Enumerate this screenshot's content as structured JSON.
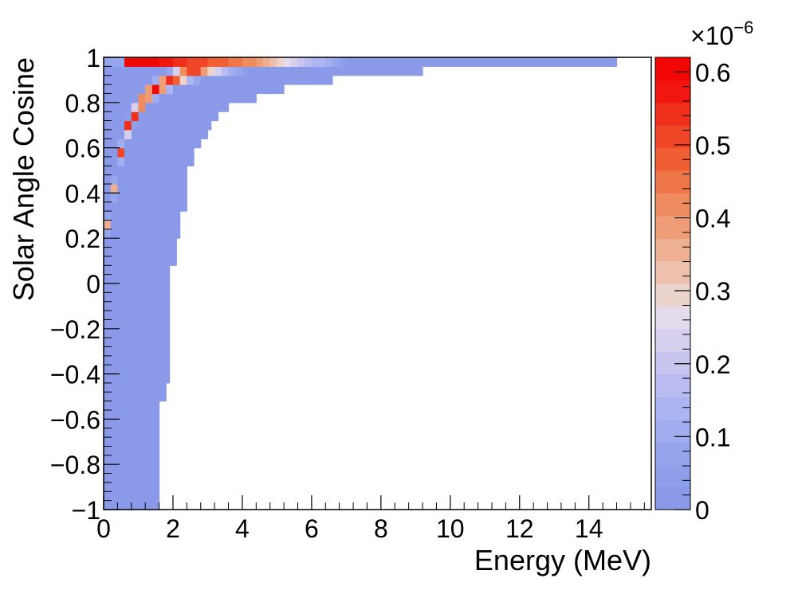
{
  "chart_data": {
    "type": "heatmap",
    "title": "",
    "xlabel": "Energy (MeV)",
    "ylabel": "Solar Angle Cosine",
    "xlim": [
      0,
      15.8
    ],
    "ylim": [
      -1,
      1
    ],
    "x_ticks": [
      "0",
      "2",
      "4",
      "6",
      "8",
      "10",
      "12",
      "14"
    ],
    "x_tick_values": [
      0,
      2,
      4,
      6,
      8,
      10,
      12,
      14
    ],
    "y_ticks": [
      "−1",
      "−0.8",
      "−0.6",
      "−0.4",
      "−0.2",
      "0",
      "0.2",
      "0.4",
      "0.6",
      "0.8",
      "1"
    ],
    "y_tick_values": [
      -1,
      -0.8,
      -0.6,
      -0.4,
      -0.2,
      0,
      0.2,
      0.4,
      0.6,
      0.8,
      1
    ],
    "colorbar": {
      "range": [
        0,
        0.62
      ],
      "multiplier": "×10",
      "exponent": "−6",
      "ticks": [
        "0",
        "0.1",
        "0.2",
        "0.3",
        "0.4",
        "0.5",
        "0.6"
      ],
      "tick_values": [
        0,
        0.1,
        0.2,
        0.3,
        0.4,
        0.5,
        0.6
      ],
      "palette": [
        "#8a9ae8",
        "#8e9ee9",
        "#95a6ed",
        "#a0aef0",
        "#acb4f1",
        "#b9bbf1",
        "#c8c5ef",
        "#d6d0ee",
        "#e4dbed",
        "#ecd3cc",
        "#edc1ae",
        "#edb092",
        "#ee9d76",
        "#ee8b5f",
        "#ef7649",
        "#ef5f33",
        "#f04628",
        "#f02e1c",
        "#f11710",
        "#f20505"
      ]
    },
    "bins": {
      "x_bin_width": 0.2,
      "y_bin_width": 0.04,
      "extent_note_values": "energy extent (MeV) of nonzero content per cosine band",
      "bands": [
        {
          "y_min": -1.0,
          "y_max": -0.52,
          "x_max": 1.6
        },
        {
          "y_min": -0.52,
          "y_max": -0.44,
          "x_max": 1.8
        },
        {
          "y_min": -0.44,
          "y_max": 0.08,
          "x_max": 1.9
        },
        {
          "y_min": 0.08,
          "y_max": 0.2,
          "x_max": 2.1
        },
        {
          "y_min": 0.2,
          "y_max": 0.32,
          "x_max": 2.2
        },
        {
          "y_min": 0.32,
          "y_max": 0.52,
          "x_max": 2.4
        },
        {
          "y_min": 0.52,
          "y_max": 0.6,
          "x_max": 2.6
        },
        {
          "y_min": 0.6,
          "y_max": 0.64,
          "x_max": 2.8
        },
        {
          "y_min": 0.64,
          "y_max": 0.68,
          "x_max": 3.0
        },
        {
          "y_min": 0.68,
          "y_max": 0.72,
          "x_max": 3.1
        },
        {
          "y_min": 0.72,
          "y_max": 0.76,
          "x_max": 3.3
        },
        {
          "y_min": 0.76,
          "y_max": 0.8,
          "x_max": 3.6
        },
        {
          "y_min": 0.8,
          "y_max": 0.84,
          "x_max": 4.4
        },
        {
          "y_min": 0.84,
          "y_max": 0.88,
          "x_max": 5.2
        },
        {
          "y_min": 0.88,
          "y_max": 0.92,
          "x_max": 6.6
        },
        {
          "y_min": 0.92,
          "y_max": 0.96,
          "x_max": 9.2
        },
        {
          "y_min": 0.96,
          "y_max": 1.0,
          "x_max": 14.8
        }
      ],
      "peak_ridge": [
        {
          "x": 0.3,
          "y": 0.42,
          "value": 0.35
        },
        {
          "x": 0.4,
          "y": 0.5,
          "value": 0.42
        },
        {
          "x": 0.5,
          "y": 0.58,
          "value": 0.52
        },
        {
          "x": 0.6,
          "y": 0.66,
          "value": 0.58
        },
        {
          "x": 0.8,
          "y": 0.72,
          "value": 0.6
        },
        {
          "x": 1.0,
          "y": 0.78,
          "value": 0.62
        },
        {
          "x": 1.3,
          "y": 0.84,
          "value": 0.6
        },
        {
          "x": 1.7,
          "y": 0.88,
          "value": 0.58
        },
        {
          "x": 2.2,
          "y": 0.92,
          "value": 0.54
        },
        {
          "x": 3.0,
          "y": 0.96,
          "value": 0.5
        },
        {
          "x": 4.2,
          "y": 0.99,
          "value": 0.42
        }
      ]
    }
  }
}
